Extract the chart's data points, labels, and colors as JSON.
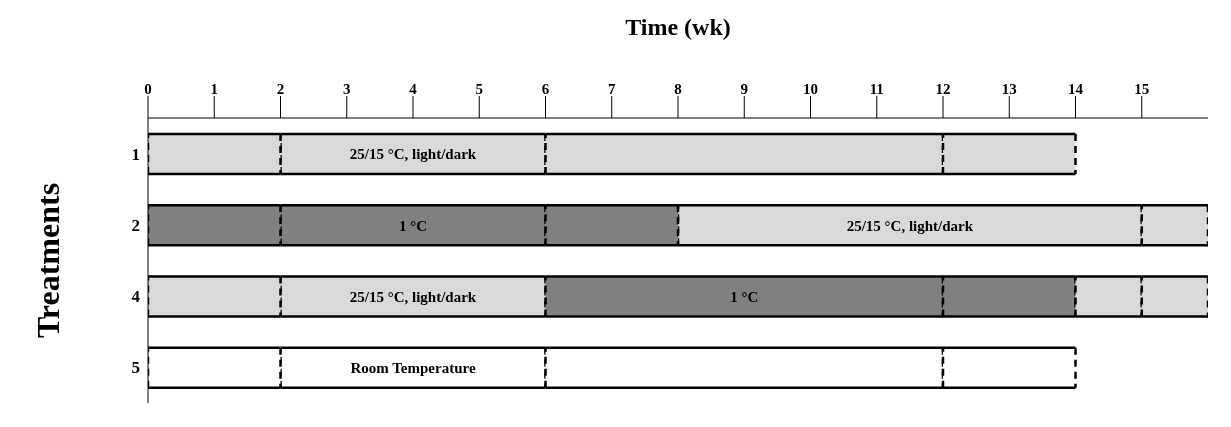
{
  "chart_data": {
    "type": "bar",
    "orientation": "horizontal",
    "xlabel": "Time (wk)",
    "ylabel": "Treatments",
    "categories": [
      "1",
      "2",
      "4",
      "5"
    ],
    "series": [
      {
        "name": "25/15 °C, light/dark",
        "color": "#d9d9d9",
        "base": [
          2,
          8,
          2,
          null
        ],
        "values": [
          4,
          7,
          4,
          null
        ]
      },
      {
        "name": "1 °C",
        "color": "#808080",
        "base": [
          null,
          2,
          6,
          null
        ],
        "values": [
          null,
          4,
          6,
          null
        ]
      },
      {
        "name": "Room Temperature",
        "color": "#ffffff",
        "base": [
          null,
          null,
          null,
          2
        ],
        "values": [
          null,
          null,
          null,
          4
        ]
      },
      {
        "colors": [
          "#d9d9d9",
          "#808080",
          "#d9d9d9",
          "#ffffff"
        ],
        "base": [
          0,
          0,
          0,
          0
        ],
        "values": [
          2,
          2,
          2,
          2
        ]
      },
      {
        "colors": [
          "#d9d9d9",
          "#808080",
          "#808080",
          "#ffffff"
        ],
        "base": [
          6,
          6,
          12,
          6
        ],
        "values": [
          6,
          2,
          2,
          6
        ]
      },
      {
        "colors": [
          "#d9d9d9",
          "#d9d9d9",
          "#d9d9d9",
          "#ffffff"
        ],
        "base": [
          12,
          15,
          14,
          12
        ],
        "values": [
          2,
          1,
          1,
          2
        ]
      },
      {
        "colors": [
          "#d9d9d9",
          "#d9d9d9",
          "#d9d9d9",
          "#ffffff"
        ],
        "base": [
          null,
          null,
          15,
          null
        ],
        "values": [
          null,
          null,
          1,
          null
        ]
      }
    ],
    "xlim": [
      0,
      16
    ],
    "xticks": [
      0,
      1,
      2,
      3,
      4,
      5,
      6,
      7,
      8,
      9,
      10,
      11,
      12,
      13,
      14,
      15
    ]
  }
}
